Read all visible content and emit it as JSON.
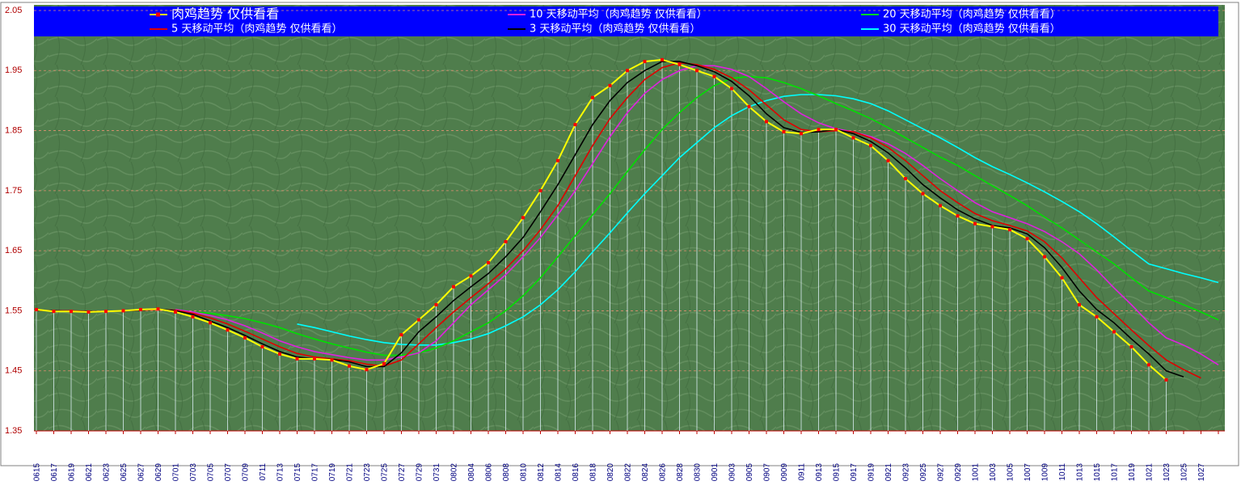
{
  "chart_data": {
    "type": "line",
    "categories": [
      "0615",
      "0617",
      "0619",
      "0621",
      "0623",
      "0625",
      "0627",
      "0629",
      "0701",
      "0703",
      "0705",
      "0707",
      "0709",
      "0711",
      "0713",
      "0715",
      "0717",
      "0719",
      "0721",
      "0723",
      "0725",
      "0727",
      "0729",
      "0731",
      "0802",
      "0804",
      "0806",
      "0808",
      "0810",
      "0812",
      "0814",
      "0816",
      "0818",
      "0820",
      "0822",
      "0824",
      "0826",
      "0828",
      "0830",
      "0901",
      "0903",
      "0905",
      "0907",
      "0909",
      "0911",
      "0913",
      "0915",
      "0917",
      "0919",
      "0921",
      "0923",
      "0925",
      "0927",
      "0929",
      "1001",
      "1003",
      "1005",
      "1007",
      "1009",
      "1011",
      "1013",
      "1015",
      "1017",
      "1019",
      "1021",
      "1023",
      "1025",
      "1027",
      null
    ],
    "ylim": [
      1.35,
      2.05
    ],
    "yticks": [
      1.35,
      1.45,
      1.55,
      1.65,
      1.75,
      1.85,
      1.95,
      2.05
    ],
    "grid": true,
    "drop_lines": true,
    "series": [
      {
        "name": "肉鸡趋势  仅供看看",
        "color": "#ffff00",
        "marker_color": "#ff0000",
        "values": [
          1.552,
          1.549,
          1.549,
          1.548,
          1.549,
          1.55,
          1.552,
          1.553,
          1.548,
          1.54,
          1.53,
          1.518,
          1.505,
          1.49,
          1.478,
          1.47,
          1.47,
          1.468,
          1.458,
          1.452,
          1.462,
          1.51,
          1.535,
          1.56,
          1.59,
          1.608,
          1.63,
          1.665,
          1.705,
          1.75,
          1.8,
          1.86,
          1.905,
          1.925,
          1.95,
          1.965,
          1.968,
          1.96,
          1.95,
          1.94,
          1.92,
          1.89,
          1.865,
          1.848,
          1.845,
          1.852,
          1.852,
          1.838,
          1.825,
          1.8,
          1.77,
          1.745,
          1.725,
          1.708,
          1.695,
          1.69,
          1.685,
          1.67,
          1.64,
          1.605,
          1.56,
          1.54,
          1.515,
          1.49,
          1.46,
          1.435,
          null,
          null,
          null
        ]
      },
      {
        "name": "5 天移动平均（肉鸡趋势  仅供看看）",
        "color": "#e00000",
        "values": [
          1.551,
          1.55,
          1.55,
          1.549,
          1.549,
          1.55,
          1.551,
          1.552,
          1.551,
          1.546,
          1.538,
          1.528,
          1.516,
          1.503,
          1.49,
          1.479,
          1.473,
          1.47,
          1.467,
          1.461,
          1.458,
          1.468,
          1.495,
          1.522,
          1.548,
          1.572,
          1.595,
          1.62,
          1.65,
          1.685,
          1.725,
          1.775,
          1.825,
          1.87,
          1.905,
          1.935,
          1.955,
          1.963,
          1.96,
          1.952,
          1.938,
          1.918,
          1.893,
          1.868,
          1.852,
          1.848,
          1.85,
          1.848,
          1.838,
          1.822,
          1.8,
          1.775,
          1.75,
          1.73,
          1.712,
          1.7,
          1.692,
          1.683,
          1.665,
          1.638,
          1.605,
          1.572,
          1.545,
          1.518,
          1.492,
          1.468,
          1.452,
          1.438,
          null
        ]
      },
      {
        "name": "10 天移动平均（肉鸡趋势 仅供看看）",
        "color": "#e020e0",
        "values": [
          null,
          null,
          null,
          null,
          null,
          null,
          null,
          null,
          1.552,
          1.548,
          1.542,
          1.535,
          1.525,
          1.513,
          1.5,
          1.49,
          1.482,
          1.477,
          1.472,
          1.468,
          1.468,
          1.473,
          1.48,
          1.5,
          1.53,
          1.56,
          1.585,
          1.61,
          1.64,
          1.672,
          1.71,
          1.75,
          1.795,
          1.84,
          1.88,
          1.912,
          1.935,
          1.95,
          1.958,
          1.958,
          1.952,
          1.94,
          1.92,
          1.898,
          1.878,
          1.863,
          1.853,
          1.848,
          1.84,
          1.828,
          1.812,
          1.792,
          1.77,
          1.75,
          1.73,
          1.715,
          1.705,
          1.695,
          1.682,
          1.665,
          1.645,
          1.618,
          1.588,
          1.56,
          1.53,
          1.505,
          1.493,
          1.478,
          1.46
        ]
      },
      {
        "name": "3 天移动平均（肉鸡趋势 仅供看看）",
        "color": "#000000",
        "values": [
          1.551,
          1.55,
          1.549,
          1.549,
          1.549,
          1.55,
          1.551,
          1.553,
          1.55,
          1.544,
          1.533,
          1.522,
          1.509,
          1.495,
          1.482,
          1.473,
          1.47,
          1.469,
          1.465,
          1.457,
          1.457,
          1.48,
          1.515,
          1.54,
          1.567,
          1.59,
          1.612,
          1.64,
          1.672,
          1.715,
          1.76,
          1.81,
          1.86,
          1.9,
          1.93,
          1.95,
          1.965,
          1.965,
          1.958,
          1.948,
          1.932,
          1.908,
          1.878,
          1.855,
          1.847,
          1.848,
          1.852,
          1.845,
          1.832,
          1.813,
          1.788,
          1.76,
          1.738,
          1.718,
          1.703,
          1.692,
          1.688,
          1.678,
          1.655,
          1.622,
          1.583,
          1.552,
          1.53,
          1.503,
          1.478,
          1.45,
          1.44,
          null,
          null
        ]
      },
      {
        "name": "20 天移动平均（肉鸡趋势 仅供看看）",
        "color": "#00e000",
        "values": [
          null,
          null,
          null,
          null,
          null,
          null,
          null,
          null,
          null,
          1.548,
          1.546,
          1.542,
          1.537,
          1.53,
          1.522,
          1.512,
          1.503,
          1.495,
          1.488,
          1.481,
          1.476,
          1.476,
          1.48,
          1.488,
          1.5,
          1.515,
          1.53,
          1.55,
          1.575,
          1.605,
          1.64,
          1.675,
          1.71,
          1.745,
          1.782,
          1.818,
          1.852,
          1.88,
          1.905,
          1.925,
          1.937,
          1.94,
          1.938,
          1.93,
          1.92,
          1.908,
          1.895,
          1.883,
          1.87,
          1.855,
          1.838,
          1.822,
          1.806,
          1.792,
          1.775,
          1.758,
          1.742,
          1.725,
          1.706,
          1.688,
          1.668,
          1.648,
          1.628,
          1.605,
          1.583,
          1.572,
          1.56,
          1.548,
          1.535
        ]
      },
      {
        "name": "30 天移动平均（肉鸡趋势 仅供看看）",
        "color": "#00ffff",
        "values": [
          null,
          null,
          null,
          null,
          null,
          null,
          null,
          null,
          null,
          null,
          null,
          null,
          null,
          null,
          null,
          1.528,
          1.522,
          1.515,
          1.508,
          1.502,
          1.497,
          1.494,
          1.493,
          1.493,
          1.497,
          1.503,
          1.512,
          1.525,
          1.54,
          1.56,
          1.585,
          1.615,
          1.648,
          1.68,
          1.713,
          1.745,
          1.775,
          1.805,
          1.83,
          1.855,
          1.875,
          1.89,
          1.9,
          1.907,
          1.91,
          1.91,
          1.908,
          1.903,
          1.895,
          1.883,
          1.868,
          1.853,
          1.838,
          1.822,
          1.805,
          1.79,
          1.777,
          1.763,
          1.748,
          1.732,
          1.715,
          1.695,
          1.673,
          1.65,
          1.628,
          1.62,
          1.612,
          1.605,
          1.597
        ]
      }
    ]
  }
}
